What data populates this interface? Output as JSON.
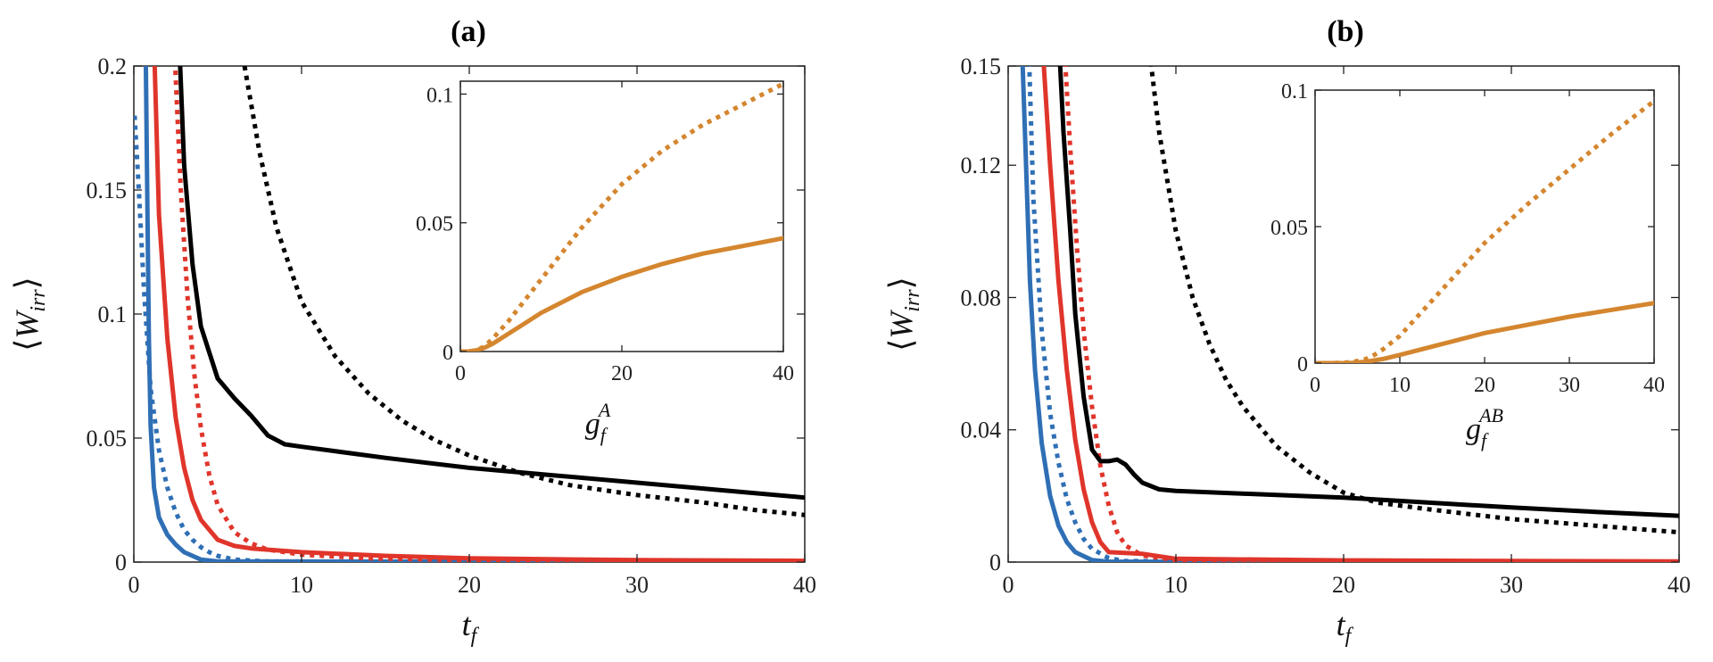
{
  "chart_data": [
    {
      "id": "a",
      "type": "line",
      "title": "(a)",
      "xlabel": "t",
      "xlabel_sub": "f",
      "ylabel_W": "W",
      "ylabel_sub": "irr",
      "ylabel_open": "⟨",
      "ylabel_close": "⟩",
      "xlim": [
        0,
        40
      ],
      "ylim": [
        0,
        0.2
      ],
      "xticks": [
        0,
        10,
        20,
        30,
        40
      ],
      "xtick_labels": [
        "0",
        "10",
        "20",
        "30",
        "40"
      ],
      "yticks": [
        0,
        0.05,
        0.1,
        0.15,
        0.2
      ],
      "ytick_labels": [
        "0",
        "0.05",
        "0.1",
        "0.15",
        "0.2"
      ],
      "series": [
        {
          "name": "blue solid",
          "color": "#2f6fb5",
          "style": "solid",
          "x": [
            0.7,
            0.8,
            0.9,
            1.0,
            1.2,
            1.5,
            2.0,
            2.5,
            3,
            4,
            5,
            40
          ],
          "y": [
            0.21,
            0.15,
            0.09,
            0.055,
            0.03,
            0.018,
            0.011,
            0.007,
            0.004,
            0.001,
            0.0003,
            0.0
          ]
        },
        {
          "name": "blue dotted",
          "color": "#2f6fb5",
          "style": "dotted",
          "x": [
            0.05,
            0.3,
            0.6,
            1.0,
            1.5,
            2.0,
            2.5,
            3,
            3.5,
            4,
            4.5,
            5,
            6,
            8,
            40
          ],
          "y": [
            0.18,
            0.15,
            0.11,
            0.07,
            0.045,
            0.03,
            0.02,
            0.013,
            0.009,
            0.006,
            0.004,
            0.0025,
            0.001,
            0.0002,
            0.0
          ]
        },
        {
          "name": "red solid",
          "color": "#e0352b",
          "style": "solid",
          "x": [
            1.2,
            1.5,
            2.0,
            2.5,
            3,
            3.5,
            4,
            5,
            6,
            7,
            10,
            15,
            20,
            30,
            40
          ],
          "y": [
            0.21,
            0.14,
            0.09,
            0.058,
            0.038,
            0.025,
            0.017,
            0.009,
            0.0065,
            0.0055,
            0.004,
            0.0025,
            0.0015,
            0.0008,
            0.0005
          ]
        },
        {
          "name": "red dotted",
          "color": "#e0352b",
          "style": "dotted",
          "x": [
            2.4,
            2.8,
            3.2,
            3.6,
            4.0,
            4.5,
            5,
            6,
            7,
            8,
            10,
            14,
            20,
            30,
            40
          ],
          "y": [
            0.21,
            0.15,
            0.107,
            0.076,
            0.054,
            0.035,
            0.023,
            0.012,
            0.0075,
            0.005,
            0.003,
            0.0015,
            0.0008,
            0.0003,
            0.0001
          ]
        },
        {
          "name": "black solid",
          "color": "#000000",
          "style": "solid",
          "x": [
            2.7,
            3.0,
            3.5,
            4,
            5,
            6,
            7,
            8,
            9,
            10,
            15,
            20,
            25,
            30,
            35,
            40
          ],
          "y": [
            0.21,
            0.16,
            0.12,
            0.095,
            0.074,
            0.066,
            0.059,
            0.051,
            0.0475,
            0.0465,
            0.042,
            0.038,
            0.035,
            0.032,
            0.029,
            0.026
          ]
        },
        {
          "name": "black dotted",
          "color": "#000000",
          "style": "dotted",
          "x": [
            6.6,
            7.5,
            8.5,
            10,
            12,
            14,
            16,
            18,
            20,
            23,
            26,
            30,
            34,
            37,
            40
          ],
          "y": [
            0.2,
            0.165,
            0.135,
            0.105,
            0.083,
            0.068,
            0.057,
            0.049,
            0.043,
            0.036,
            0.031,
            0.027,
            0.024,
            0.021,
            0.019
          ]
        }
      ],
      "inset": {
        "xlabel": "g",
        "xlabel_sub": "f",
        "xlabel_sup": "A",
        "xlim": [
          0,
          40
        ],
        "ylim": [
          0,
          0.105
        ],
        "xticks": [
          0,
          20,
          40
        ],
        "xtick_labels": [
          "0",
          "20",
          "40"
        ],
        "yticks": [
          0,
          0.05,
          0.1
        ],
        "ytick_labels": [
          "0",
          "0.05",
          "0.1"
        ],
        "series": [
          {
            "name": "orange dotted",
            "color": "#d4862f",
            "style": "dotted",
            "x": [
              0,
              1,
              2,
              3,
              4,
              6,
              8,
              10,
              15,
              20,
              25,
              30,
              35,
              40
            ],
            "y": [
              0,
              0,
              0.0005,
              0.002,
              0.005,
              0.012,
              0.02,
              0.028,
              0.048,
              0.065,
              0.078,
              0.088,
              0.096,
              0.104
            ]
          },
          {
            "name": "orange solid",
            "color": "#d4862f",
            "style": "solid",
            "x": [
              0,
              1,
              2,
              3,
              4,
              6,
              8,
              10,
              15,
              20,
              25,
              30,
              35,
              40
            ],
            "y": [
              0,
              0,
              0.0005,
              0.0015,
              0.003,
              0.007,
              0.011,
              0.015,
              0.023,
              0.029,
              0.034,
              0.038,
              0.041,
              0.044
            ]
          }
        ]
      }
    },
    {
      "id": "b",
      "type": "line",
      "title": "(b)",
      "xlabel": "t",
      "xlabel_sub": "f",
      "ylabel_W": "W",
      "ylabel_sub": "irr",
      "ylabel_open": "⟨",
      "ylabel_close": "⟩",
      "xlim": [
        0,
        40
      ],
      "ylim": [
        0,
        0.15
      ],
      "xticks": [
        0,
        10,
        20,
        30,
        40
      ],
      "xtick_labels": [
        "0",
        "10",
        "20",
        "30",
        "40"
      ],
      "yticks": [
        0,
        0.04,
        0.08,
        0.12,
        0.15
      ],
      "ytick_labels": [
        "0",
        "0.04",
        "0.08",
        "0.12",
        "0.15"
      ],
      "series": [
        {
          "name": "blue solid",
          "color": "#2f6fb5",
          "style": "solid",
          "x": [
            0.8,
            1.0,
            1.3,
            1.6,
            2.0,
            2.5,
            3,
            3.5,
            4,
            5,
            6,
            40
          ],
          "y": [
            0.16,
            0.13,
            0.085,
            0.058,
            0.036,
            0.02,
            0.011,
            0.006,
            0.003,
            0.0006,
            0.0001,
            0.0
          ]
        },
        {
          "name": "blue dotted",
          "color": "#2f6fb5",
          "style": "dotted",
          "x": [
            1.2,
            1.5,
            2.0,
            2.5,
            3,
            3.5,
            4,
            4.5,
            5,
            6,
            7,
            40
          ],
          "y": [
            0.16,
            0.11,
            0.07,
            0.045,
            0.03,
            0.019,
            0.012,
            0.007,
            0.004,
            0.0012,
            0.0003,
            0.0
          ]
        },
        {
          "name": "red solid",
          "color": "#e0352b",
          "style": "solid",
          "x": [
            2.0,
            2.5,
            3,
            3.5,
            4,
            4.5,
            5,
            5.5,
            6,
            8,
            10,
            20,
            40
          ],
          "y": [
            0.16,
            0.12,
            0.085,
            0.058,
            0.037,
            0.022,
            0.012,
            0.006,
            0.003,
            0.0025,
            0.001,
            0.0005,
            0.0002
          ]
        },
        {
          "name": "red dotted",
          "color": "#e0352b",
          "style": "dotted",
          "x": [
            3.3,
            3.7,
            4.1,
            4.5,
            5,
            5.5,
            6,
            6.5,
            7,
            8,
            10,
            20,
            40
          ],
          "y": [
            0.16,
            0.125,
            0.095,
            0.07,
            0.047,
            0.029,
            0.017,
            0.009,
            0.005,
            0.002,
            0.0006,
            0.0001,
            0.0
          ]
        },
        {
          "name": "black solid",
          "color": "#000000",
          "style": "solid",
          "x": [
            3.0,
            3.3,
            3.7,
            4,
            4.5,
            5,
            5.5,
            6,
            6.5,
            7,
            7.5,
            8,
            9,
            10,
            15,
            20,
            25,
            30,
            35,
            40
          ],
          "y": [
            0.16,
            0.13,
            0.1,
            0.075,
            0.05,
            0.034,
            0.0305,
            0.0305,
            0.031,
            0.0295,
            0.0265,
            0.024,
            0.022,
            0.0215,
            0.0205,
            0.0195,
            0.018,
            0.0165,
            0.0152,
            0.014
          ]
        },
        {
          "name": "black dotted",
          "color": "#000000",
          "style": "dotted",
          "x": [
            8.3,
            9,
            10,
            11,
            12,
            13,
            14,
            16,
            18,
            20,
            22,
            25,
            30,
            35,
            40
          ],
          "y": [
            0.16,
            0.13,
            0.1,
            0.08,
            0.066,
            0.055,
            0.047,
            0.035,
            0.027,
            0.021,
            0.018,
            0.016,
            0.013,
            0.011,
            0.009
          ]
        }
      ],
      "inset": {
        "xlabel": "g",
        "xlabel_sub": "f",
        "xlabel_sup": "AB",
        "xlim": [
          0,
          40
        ],
        "ylim": [
          0,
          0.1
        ],
        "xticks": [
          0,
          10,
          20,
          30,
          40
        ],
        "xtick_labels": [
          "0",
          "10",
          "20",
          "30",
          "40"
        ],
        "yticks": [
          0,
          0.05,
          0.1
        ],
        "ytick_labels": [
          "0",
          "0.05",
          "0.1"
        ],
        "series": [
          {
            "name": "orange dotted",
            "color": "#d4862f",
            "style": "dotted",
            "x": [
              0,
              2,
              4,
              5,
              6,
              7,
              8,
              10,
              15,
              20,
              25,
              30,
              35,
              40
            ],
            "y": [
              0,
              0,
              0.0003,
              0.0008,
              0.0015,
              0.003,
              0.005,
              0.01,
              0.027,
              0.044,
              0.058,
              0.071,
              0.084,
              0.096
            ]
          },
          {
            "name": "orange solid",
            "color": "#d4862f",
            "style": "solid",
            "x": [
              0,
              4,
              6,
              8,
              10,
              15,
              20,
              25,
              30,
              35,
              40
            ],
            "y": [
              0,
              0,
              0.0005,
              0.0015,
              0.003,
              0.007,
              0.011,
              0.014,
              0.017,
              0.0195,
              0.022
            ]
          }
        ]
      }
    }
  ]
}
